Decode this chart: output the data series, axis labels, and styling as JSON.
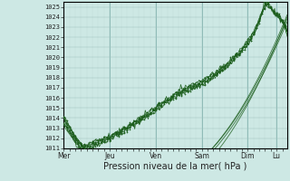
{
  "bg_color": "#cde8e4",
  "grid_major_color": "#a0c4c0",
  "grid_minor_color": "#b8d8d4",
  "line_color": "#1a5c1a",
  "ylim": [
    1011,
    1025.5
  ],
  "yticks": [
    1011,
    1012,
    1013,
    1014,
    1015,
    1016,
    1017,
    1018,
    1019,
    1020,
    1021,
    1022,
    1023,
    1024,
    1025
  ],
  "xlabel": "Pression niveau de la mer( hPa )",
  "xlabel_fontsize": 7,
  "day_labels": [
    "Mer",
    "Jeu",
    "Ven",
    "Sam",
    "Dim",
    "Lu"
  ],
  "day_positions": [
    0,
    48,
    96,
    144,
    192,
    222
  ],
  "total_hours": 234,
  "ytick_fontsize": 5,
  "xtick_fontsize": 5.5
}
